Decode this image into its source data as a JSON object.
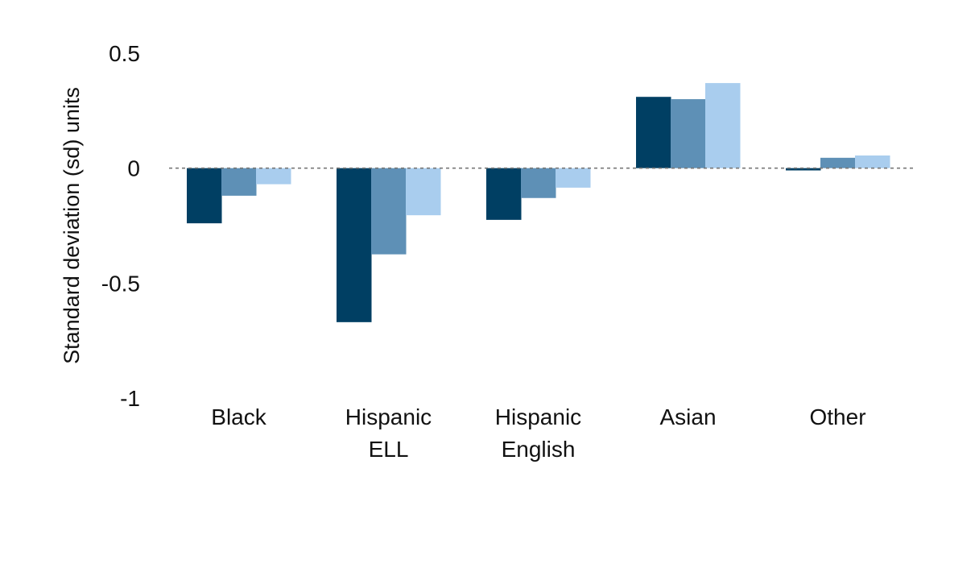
{
  "chart_data": {
    "type": "bar",
    "title": "",
    "xlabel": "",
    "ylabel": "Standard deviation (sd) units",
    "ylim": [
      -1,
      0.5
    ],
    "yticks": [
      0.5,
      0,
      -0.5,
      -1
    ],
    "ytick_labels": [
      "0.5",
      "0",
      "-0.5",
      "-1"
    ],
    "categories": [
      [
        "Black"
      ],
      [
        "Hispanic",
        "ELL"
      ],
      [
        "Hispanic",
        "English"
      ],
      [
        "Asian"
      ],
      [
        "Other"
      ]
    ],
    "series": [
      {
        "color": "#003f63",
        "values": [
          -0.24,
          -0.67,
          -0.225,
          0.31,
          -0.01
        ]
      },
      {
        "color": "#5e90b6",
        "values": [
          -0.12,
          -0.375,
          -0.13,
          0.3,
          0.045
        ]
      },
      {
        "color": "#a9cdee",
        "values": [
          -0.07,
          -0.205,
          -0.085,
          0.37,
          0.055
        ]
      }
    ],
    "zero_line": {
      "style": "dotted",
      "color": "#777777"
    },
    "grid": false,
    "legend": "none"
  }
}
